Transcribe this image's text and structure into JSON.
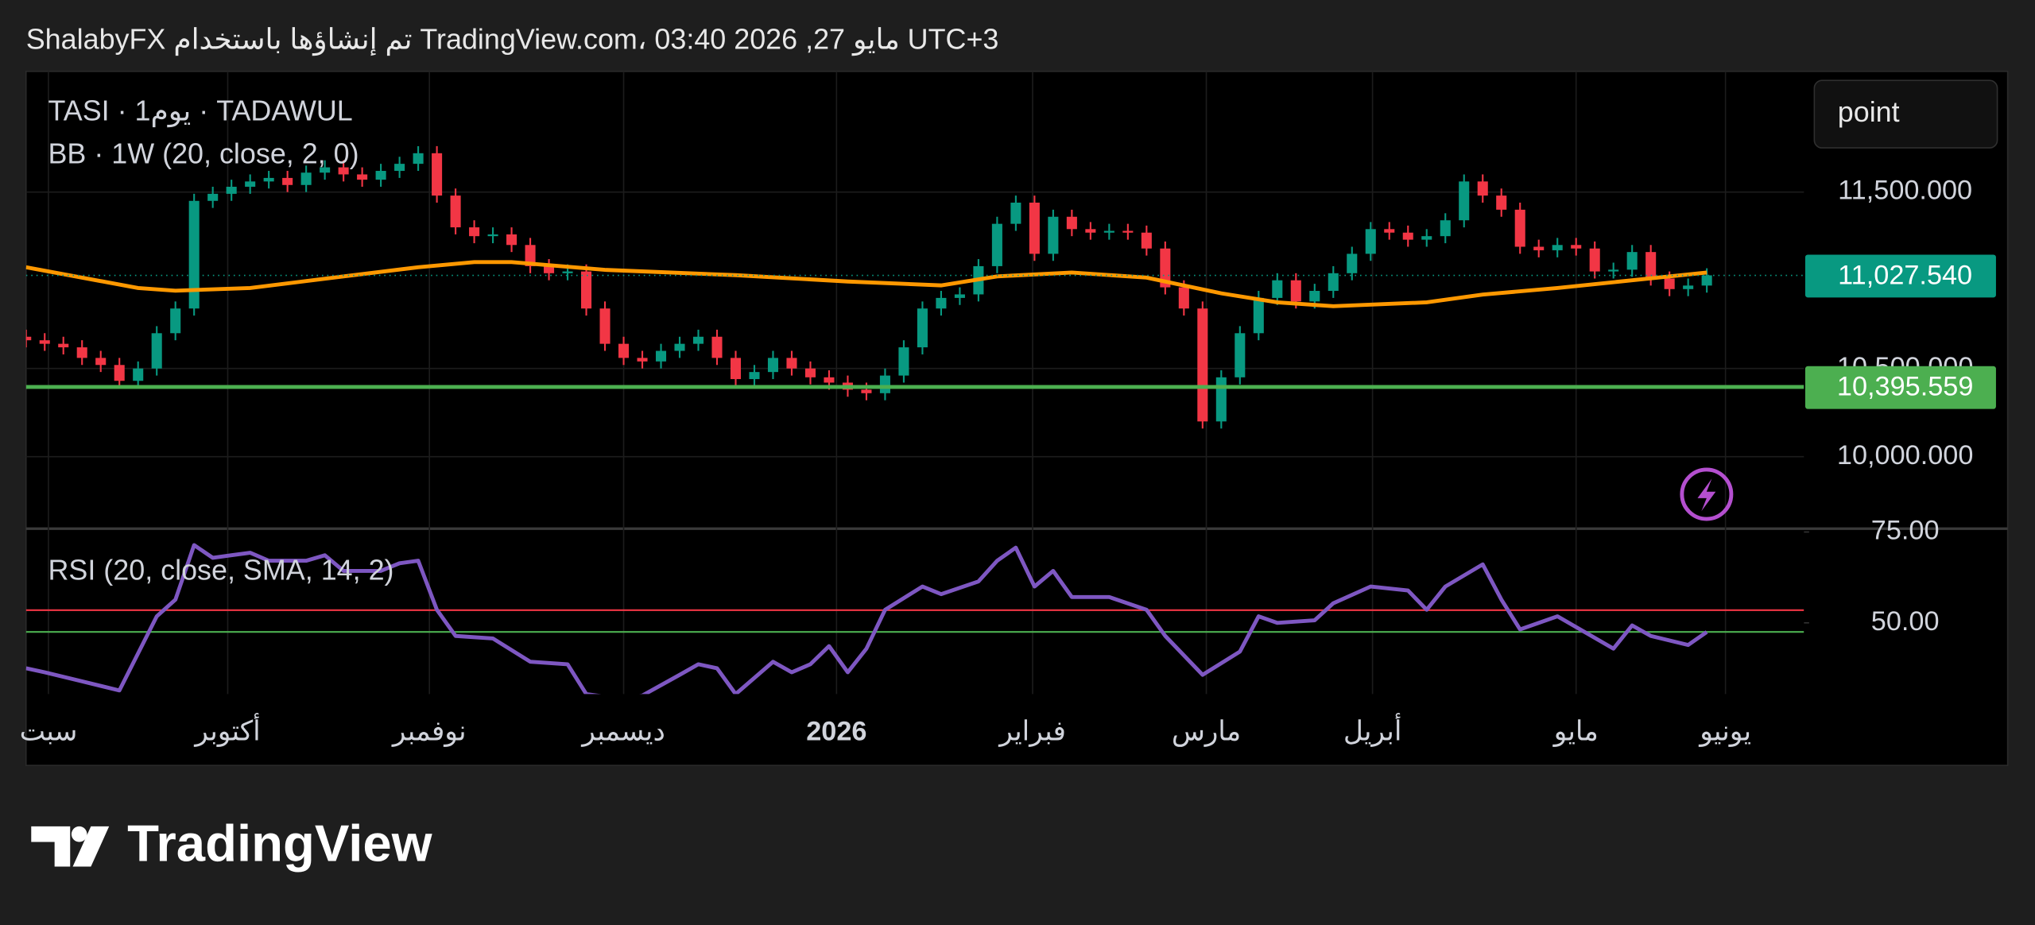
{
  "header": "ShalabyFX تم إنشاؤها باستخدام TradingView.com، 03:40 2026 ,27 مايو UTC+3",
  "logo": "TradingView",
  "button": "point",
  "chart_data": [
    {
      "type": "candlestick",
      "title": "TASI · 1يوم · TADAWUL",
      "up_color": "#089981",
      "down_color": "#f23645",
      "open": [
        10680,
        10660,
        10640,
        10620,
        10560,
        10520,
        10430,
        10500,
        10700,
        10840,
        11450,
        11490,
        11530,
        11560,
        11580,
        11540,
        11610,
        11640,
        11600,
        11570,
        11620,
        11660,
        11720,
        11480,
        11300,
        11250,
        11260,
        11200,
        11080,
        11040,
        11050,
        10840,
        10640,
        10560,
        10540,
        10600,
        10640,
        10680,
        10560,
        10440,
        10480,
        10560,
        10500,
        10450,
        10420,
        10380,
        10360,
        10460,
        10620,
        10840,
        10900,
        10920,
        11080,
        11320,
        11440,
        11150,
        11360,
        11290,
        11270,
        11280,
        11270,
        11180,
        10960,
        10840,
        10200,
        10450,
        10700,
        10900,
        11000,
        10880,
        10940,
        11040,
        11150,
        11290,
        11270,
        11230,
        11250,
        11340,
        11560,
        11480,
        11400,
        11190,
        11170,
        11200,
        11180,
        11050,
        11060,
        11160,
        11010,
        10950,
        10970
      ],
      "high": [
        10720,
        10700,
        10680,
        10660,
        10600,
        10560,
        10540,
        10740,
        10880,
        11490,
        11530,
        11570,
        11600,
        11620,
        11620,
        11650,
        11680,
        11680,
        11640,
        11660,
        11700,
        11760,
        11760,
        11520,
        11340,
        11300,
        11300,
        11240,
        11120,
        11090,
        11090,
        10880,
        10680,
        10600,
        10640,
        10680,
        10720,
        10720,
        10600,
        10520,
        10600,
        10600,
        10540,
        10490,
        10460,
        10420,
        10500,
        10660,
        10880,
        10940,
        10960,
        11120,
        11360,
        11480,
        11480,
        11400,
        11400,
        11330,
        11320,
        11320,
        11310,
        11220,
        11000,
        10880,
        10490,
        10740,
        10940,
        11040,
        11040,
        10980,
        11080,
        11190,
        11330,
        11330,
        11310,
        11290,
        11380,
        11600,
        11600,
        11520,
        11440,
        11230,
        11240,
        11240,
        11220,
        11100,
        11200,
        11200,
        11050,
        11010,
        11068
      ],
      "low": [
        10620,
        10600,
        10580,
        10520,
        10480,
        10390,
        10390,
        10460,
        10660,
        10800,
        11410,
        11450,
        11490,
        11520,
        11500,
        11500,
        11570,
        11560,
        11530,
        11530,
        11580,
        11620,
        11440,
        11260,
        11210,
        11210,
        11160,
        11040,
        11000,
        11000,
        10800,
        10600,
        10520,
        10500,
        10500,
        10560,
        10600,
        10520,
        10400,
        10400,
        10440,
        10460,
        10410,
        10380,
        10340,
        10320,
        10320,
        10420,
        10580,
        10800,
        10860,
        10880,
        11040,
        11280,
        11110,
        11110,
        11250,
        11230,
        11230,
        11230,
        11140,
        10920,
        10800,
        10160,
        10160,
        10410,
        10660,
        10860,
        10840,
        10840,
        10900,
        11000,
        11110,
        11230,
        11190,
        11190,
        11210,
        11300,
        11440,
        11360,
        11150,
        11130,
        11130,
        11140,
        11010,
        11010,
        11020,
        10970,
        10910,
        10910,
        10930
      ],
      "close": [
        10660,
        10640,
        10620,
        10560,
        10520,
        10430,
        10500,
        10700,
        10840,
        11450,
        11490,
        11530,
        11560,
        11580,
        11540,
        11610,
        11640,
        11600,
        11570,
        11620,
        11660,
        11720,
        11480,
        11300,
        11250,
        11260,
        11200,
        11080,
        11040,
        11050,
        10840,
        10640,
        10560,
        10540,
        10600,
        10640,
        10680,
        10560,
        10440,
        10480,
        10560,
        10500,
        10450,
        10420,
        10380,
        10360,
        10460,
        10620,
        10840,
        10900,
        10920,
        11080,
        11320,
        11440,
        11150,
        11360,
        11290,
        11270,
        11280,
        11270,
        11180,
        10960,
        10840,
        10200,
        10450,
        10700,
        10900,
        11000,
        10880,
        10940,
        11040,
        11150,
        11290,
        11270,
        11230,
        11250,
        11340,
        11560,
        11480,
        11400,
        11190,
        11170,
        11200,
        11180,
        11050,
        11060,
        11160,
        11010,
        10950,
        10970,
        11028
      ],
      "series": [
        {
          "name": "BB · 1W (20, close, 2, 0)",
          "color": "#ff9800",
          "x": [
            0,
            6,
            8,
            12,
            17,
            21,
            24,
            26,
            31,
            38,
            44,
            49,
            52,
            56,
            60,
            64,
            67,
            70,
            75,
            78,
            82,
            86,
            90
          ],
          "values": [
            11074,
            10956,
            10941,
            10956,
            11022,
            11074,
            11103,
            11103,
            11059,
            11029,
            10993,
            10971,
            11022,
            11044,
            11015,
            10926,
            10875,
            10853,
            10875,
            10919,
            10956,
            11000,
            11044
          ]
        }
      ],
      "last_price": {
        "value": 11027.54,
        "label": "11,027.540",
        "color": "#089981"
      },
      "hline": {
        "value": 10395.559,
        "label": "10,395.559",
        "color": "#4caf50"
      },
      "xlim": [
        0,
        95.2
      ],
      "ylim": [
        9596,
        12184
      ],
      "yticks": [
        {
          "value": 10000,
          "label": "10,000.000"
        },
        {
          "value": 10500,
          "label": "10,500.000"
        },
        {
          "value": 11500,
          "label": "11,500.000"
        }
      ],
      "xticks": [
        {
          "value": 1.2,
          "label": "سبت"
        },
        {
          "value": 10.8,
          "label": "أكتوبر"
        },
        {
          "value": 21.6,
          "label": "نوفمبر"
        },
        {
          "value": 32,
          "label": "ديسمبر"
        },
        {
          "value": 43.4,
          "label": "2026"
        },
        {
          "value": 53.9,
          "label": "فبراير"
        },
        {
          "value": 63.2,
          "label": "مارس"
        },
        {
          "value": 72.1,
          "label": "أبريل"
        },
        {
          "value": 83,
          "label": "مايو"
        },
        {
          "value": 91,
          "label": "يونيو"
        }
      ],
      "grid": true
    },
    {
      "type": "line",
      "title": "RSI (20, close, SMA, 14, 2)",
      "series": [
        {
          "name": "RSI",
          "color": "#7e57c2",
          "x": [
            0,
            1,
            3,
            5,
            7,
            8,
            9,
            10,
            11,
            12,
            13,
            15,
            16,
            17,
            19,
            20,
            21,
            22,
            23,
            25,
            27,
            29,
            30,
            32,
            33,
            35,
            36,
            37,
            38,
            40,
            41,
            42,
            43,
            44,
            45,
            46,
            48,
            49,
            51,
            52,
            53,
            54,
            55,
            56,
            58,
            60,
            61,
            63,
            65,
            66,
            67,
            69,
            70,
            72,
            74,
            75,
            76,
            78,
            79,
            80,
            82,
            85,
            86,
            87,
            89,
            90
          ],
          "values": [
            37.5,
            36.4,
            33.9,
            31.4,
            51.8,
            56.4,
            71.4,
            67.9,
            68.6,
            69.3,
            67.1,
            67.1,
            68.6,
            64.3,
            64.3,
            66.4,
            67.1,
            53.6,
            46.4,
            45.7,
            39.3,
            38.6,
            30.4,
            29,
            30,
            35.7,
            38.6,
            37.5,
            30.4,
            39.3,
            36.4,
            38.6,
            43.6,
            36.4,
            42.9,
            53.6,
            60,
            57.9,
            61.4,
            67.1,
            70.7,
            60,
            64.3,
            57.1,
            57.1,
            53.6,
            46.4,
            35.7,
            42.1,
            51.8,
            50,
            50.7,
            55.4,
            60,
            58.9,
            53.6,
            60,
            66.1,
            56.4,
            48.2,
            51.8,
            42.9,
            49.3,
            46.4,
            43.9,
            47.5
          ]
        }
      ],
      "levels": [
        {
          "value": 53.5,
          "color": "#f23645"
        },
        {
          "value": 47.5,
          "color": "#4caf50"
        }
      ],
      "xlim": [
        0,
        95.2
      ],
      "ylim": [
        30.4,
        76.1
      ],
      "yticks": [
        {
          "value": 75,
          "label": "75.00"
        },
        {
          "value": 50,
          "label": "50.00"
        }
      ]
    }
  ]
}
